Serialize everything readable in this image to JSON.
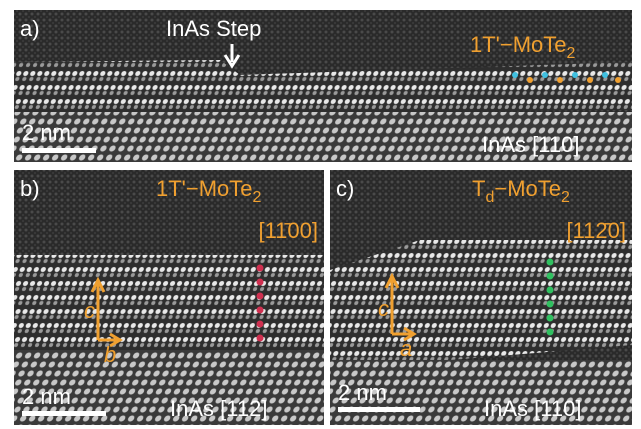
{
  "panels": [
    {
      "label": "a)",
      "annotation": "InAs Step",
      "film": {
        "main": "1T'−MoTe",
        "sub": "2"
      },
      "scale_bar": "2 nm",
      "substrate": "InAs [110]"
    },
    {
      "label": "b)",
      "film": {
        "main": "1T'−MoTe",
        "sub": "2"
      },
      "zone_axis": "[11̄00]",
      "axes": [
        "c",
        "b"
      ],
      "scale_bar": "2 nm",
      "substrate": "InAs [112]"
    },
    {
      "label": "c)",
      "film": {
        "pre": "T",
        "pre_sub": "d",
        "main": "−MoTe",
        "sub": "2"
      },
      "zone_axis": "[112̄0]",
      "axes": [
        "c",
        "a"
      ],
      "scale_bar": "2 nm",
      "substrate": "InAs [110]"
    }
  ]
}
